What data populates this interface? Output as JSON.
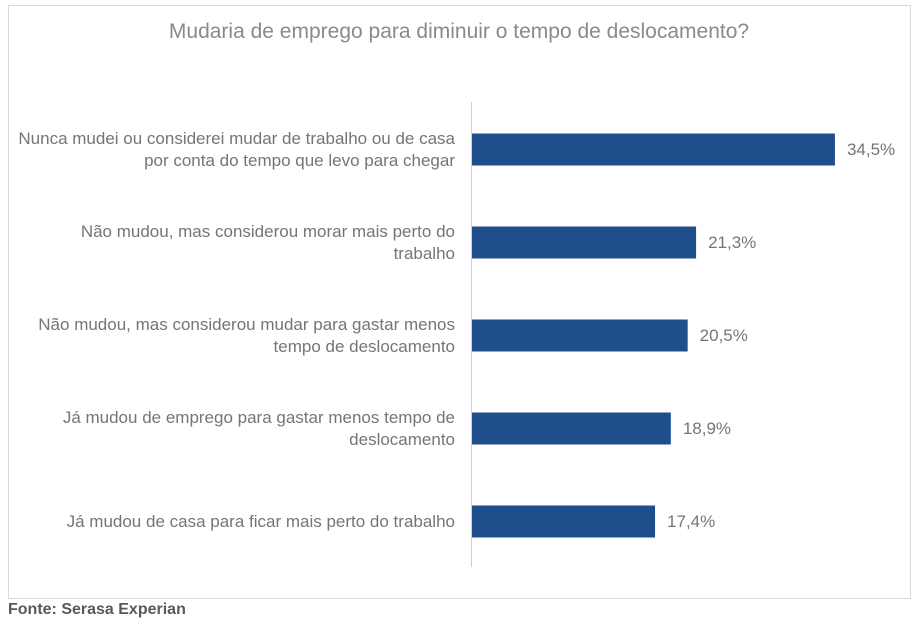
{
  "chart_data": {
    "type": "barh",
    "title": "Mudaria de emprego para diminuir o tempo de deslocamento?",
    "categories": [
      "Nunca mudei ou considerei mudar de trabalho ou de casa por conta do tempo que levo para chegar",
      "Não mudou, mas considerou morar mais perto do trabalho",
      "Não mudou, mas considerou mudar para gastar menos tempo de deslocamento",
      "Já mudou de emprego para gastar menos tempo de deslocamento",
      "Já mudou de casa para ficar mais perto do trabalho"
    ],
    "values": [
      34.5,
      21.3,
      20.5,
      18.9,
      17.4
    ],
    "value_labels": [
      "34,5%",
      "21,3%",
      "20,5%",
      "18,9%",
      "17,4%"
    ],
    "color": "#1f4e8c"
  },
  "source": "Fonte: Serasa Experian"
}
